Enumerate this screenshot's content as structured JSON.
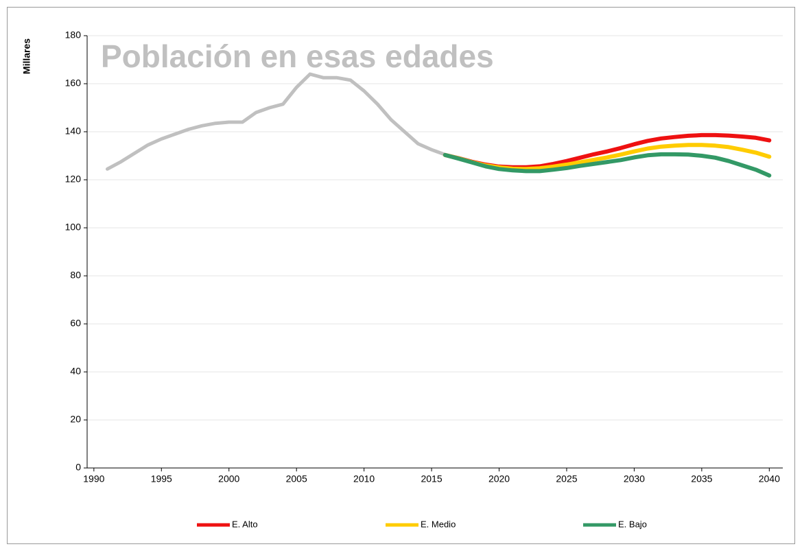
{
  "chart_data": {
    "type": "line",
    "title": "Población en esas edades",
    "ylabel": "Millares",
    "xlim": [
      1989.5,
      2041
    ],
    "xticks": [
      1990,
      1995,
      2000,
      2005,
      2010,
      2015,
      2020,
      2025,
      2030,
      2035,
      2040
    ],
    "ylim": [
      0,
      180
    ],
    "yticks": [
      0,
      20,
      40,
      60,
      80,
      100,
      120,
      140,
      160,
      180
    ],
    "grid": true,
    "legend": "bottom",
    "series": [
      {
        "color": "#c0c0c0",
        "x": [
          1991,
          1992,
          1993,
          1994,
          1995,
          1996,
          1997,
          1998,
          1999,
          2000,
          2001,
          2002,
          2003,
          2004,
          2005,
          2006,
          2007,
          2008,
          2009,
          2010,
          2011,
          2012,
          2013,
          2014,
          2015,
          2016
        ],
        "values": [
          124.5,
          127.5,
          131,
          134.5,
          137,
          139,
          141,
          142.5,
          143.5,
          144,
          144,
          148,
          150,
          151.5,
          158.5,
          164,
          162.5,
          162.5,
          161.5,
          157,
          151.5,
          145,
          140,
          135,
          132.5,
          130.5
        ]
      },
      {
        "name": "E. Alto",
        "color": "#ee1111",
        "x": [
          2016,
          2017,
          2018,
          2019,
          2020,
          2021,
          2022,
          2023,
          2024,
          2025,
          2026,
          2027,
          2028,
          2029,
          2030,
          2031,
          2032,
          2033,
          2034,
          2035,
          2036,
          2037,
          2038,
          2039,
          2040
        ],
        "values": [
          130.3,
          129,
          127.5,
          126.3,
          125.5,
          125.2,
          125.2,
          125.6,
          126.6,
          127.8,
          129.2,
          130.6,
          131.8,
          133.2,
          134.8,
          136.2,
          137.2,
          137.8,
          138.3,
          138.6,
          138.6,
          138.4,
          138,
          137.5,
          136.4
        ]
      },
      {
        "name": "E. Medio",
        "color": "#ffcc00",
        "x": [
          2016,
          2017,
          2018,
          2019,
          2020,
          2021,
          2022,
          2023,
          2024,
          2025,
          2026,
          2027,
          2028,
          2029,
          2030,
          2031,
          2032,
          2033,
          2034,
          2035,
          2036,
          2037,
          2038,
          2039,
          2040
        ],
        "values": [
          130.3,
          128.9,
          127.3,
          126,
          125.2,
          124.6,
          124.5,
          124.8,
          125.5,
          126.3,
          127.3,
          128.3,
          129.3,
          130.5,
          131.8,
          133,
          133.8,
          134.2,
          134.5,
          134.5,
          134.2,
          133.6,
          132.5,
          131.3,
          129.6
        ]
      },
      {
        "name": "E. Bajo",
        "color": "#339966",
        "x": [
          2016,
          2017,
          2018,
          2019,
          2020,
          2021,
          2022,
          2023,
          2024,
          2025,
          2026,
          2027,
          2028,
          2029,
          2030,
          2031,
          2032,
          2033,
          2034,
          2035,
          2036,
          2037,
          2038,
          2039,
          2040
        ],
        "values": [
          130.3,
          128.8,
          127.2,
          125.6,
          124.5,
          123.9,
          123.6,
          123.6,
          124.2,
          124.9,
          125.8,
          126.6,
          127.4,
          128.2,
          129.3,
          130.2,
          130.6,
          130.6,
          130.5,
          130,
          129.2,
          127.8,
          126,
          124.2,
          121.8
        ]
      }
    ]
  }
}
